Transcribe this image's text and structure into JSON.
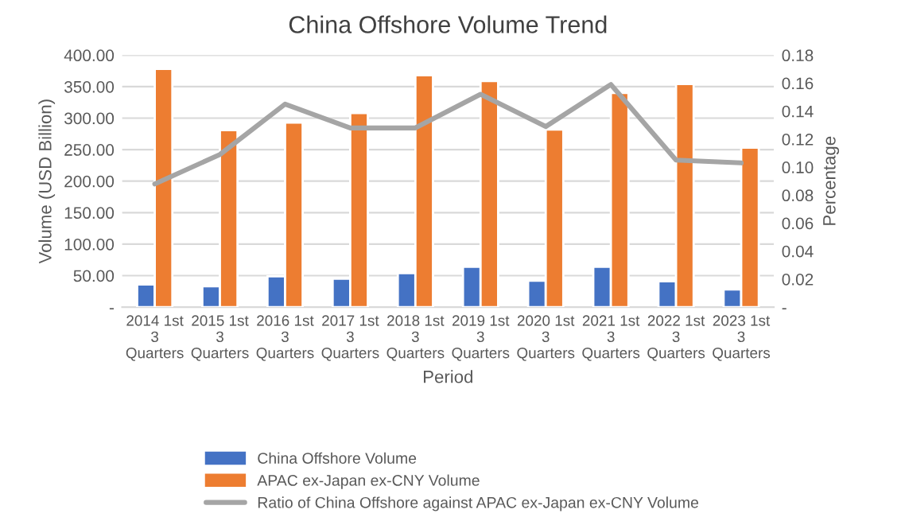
{
  "chart_data": {
    "type": "bar",
    "title": "China Offshore Volume Trend",
    "xlabel": "Period",
    "ylabel": "Volume (USD Billion)",
    "y2label": "Percentage",
    "categories": [
      "2014 1st\n3\nQuarters",
      "2015 1st\n3\nQuarters",
      "2016 1st\n3\nQuarters",
      "2017 1st\n3\nQuarters",
      "2018 1st\n3\nQuarters",
      "2019 1st\n3\nQuarters",
      "2020 1st\n3\nQuarters",
      "2021 1st\n3\nQuarters",
      "2022 1st\n3\nQuarters",
      "2023 1st\n3\nQuarters"
    ],
    "series": [
      {
        "name": "China Offshore Volume",
        "color": "#4472c4",
        "values": [
          36,
          33,
          49,
          45,
          54,
          64,
          42,
          64,
          41,
          28
        ]
      },
      {
        "name": "APAC ex-Japan ex-CNY Volume",
        "color": "#ed7d31",
        "values": [
          378,
          281,
          293,
          308,
          368,
          359,
          282,
          340,
          354,
          253
        ]
      },
      {
        "name": "Ratio of China Offshore against APAC ex-Japan ex-CNY Volume",
        "color": "#a5a5a5",
        "type": "line",
        "axis": "y2",
        "values": [
          0.088,
          0.109,
          0.145,
          0.128,
          0.128,
          0.152,
          0.129,
          0.159,
          0.105,
          0.103
        ]
      }
    ],
    "ylim": [
      0,
      400
    ],
    "yticks": [
      {
        "value": 0,
        "label": "-"
      },
      {
        "value": 50,
        "label": "50.00"
      },
      {
        "value": 100,
        "label": "100.00"
      },
      {
        "value": 150,
        "label": "150.00"
      },
      {
        "value": 200,
        "label": "200.00"
      },
      {
        "value": 250,
        "label": "250.00"
      },
      {
        "value": 300,
        "label": "300.00"
      },
      {
        "value": 350,
        "label": "350.00"
      },
      {
        "value": 400,
        "label": "400.00"
      }
    ],
    "y2lim": [
      0,
      0.18
    ],
    "y2ticks": [
      {
        "value": 0,
        "label": "-"
      },
      {
        "value": 0.02,
        "label": "0.02"
      },
      {
        "value": 0.04,
        "label": "0.04"
      },
      {
        "value": 0.06,
        "label": "0.06"
      },
      {
        "value": 0.08,
        "label": "0.08"
      },
      {
        "value": 0.1,
        "label": "0.10"
      },
      {
        "value": 0.12,
        "label": "0.12"
      },
      {
        "value": 0.14,
        "label": "0.14"
      },
      {
        "value": 0.16,
        "label": "0.16"
      },
      {
        "value": 0.18,
        "label": "0.18"
      }
    ],
    "grid": "y",
    "legend": "bottom",
    "marker": "none",
    "line_style": "solid"
  }
}
